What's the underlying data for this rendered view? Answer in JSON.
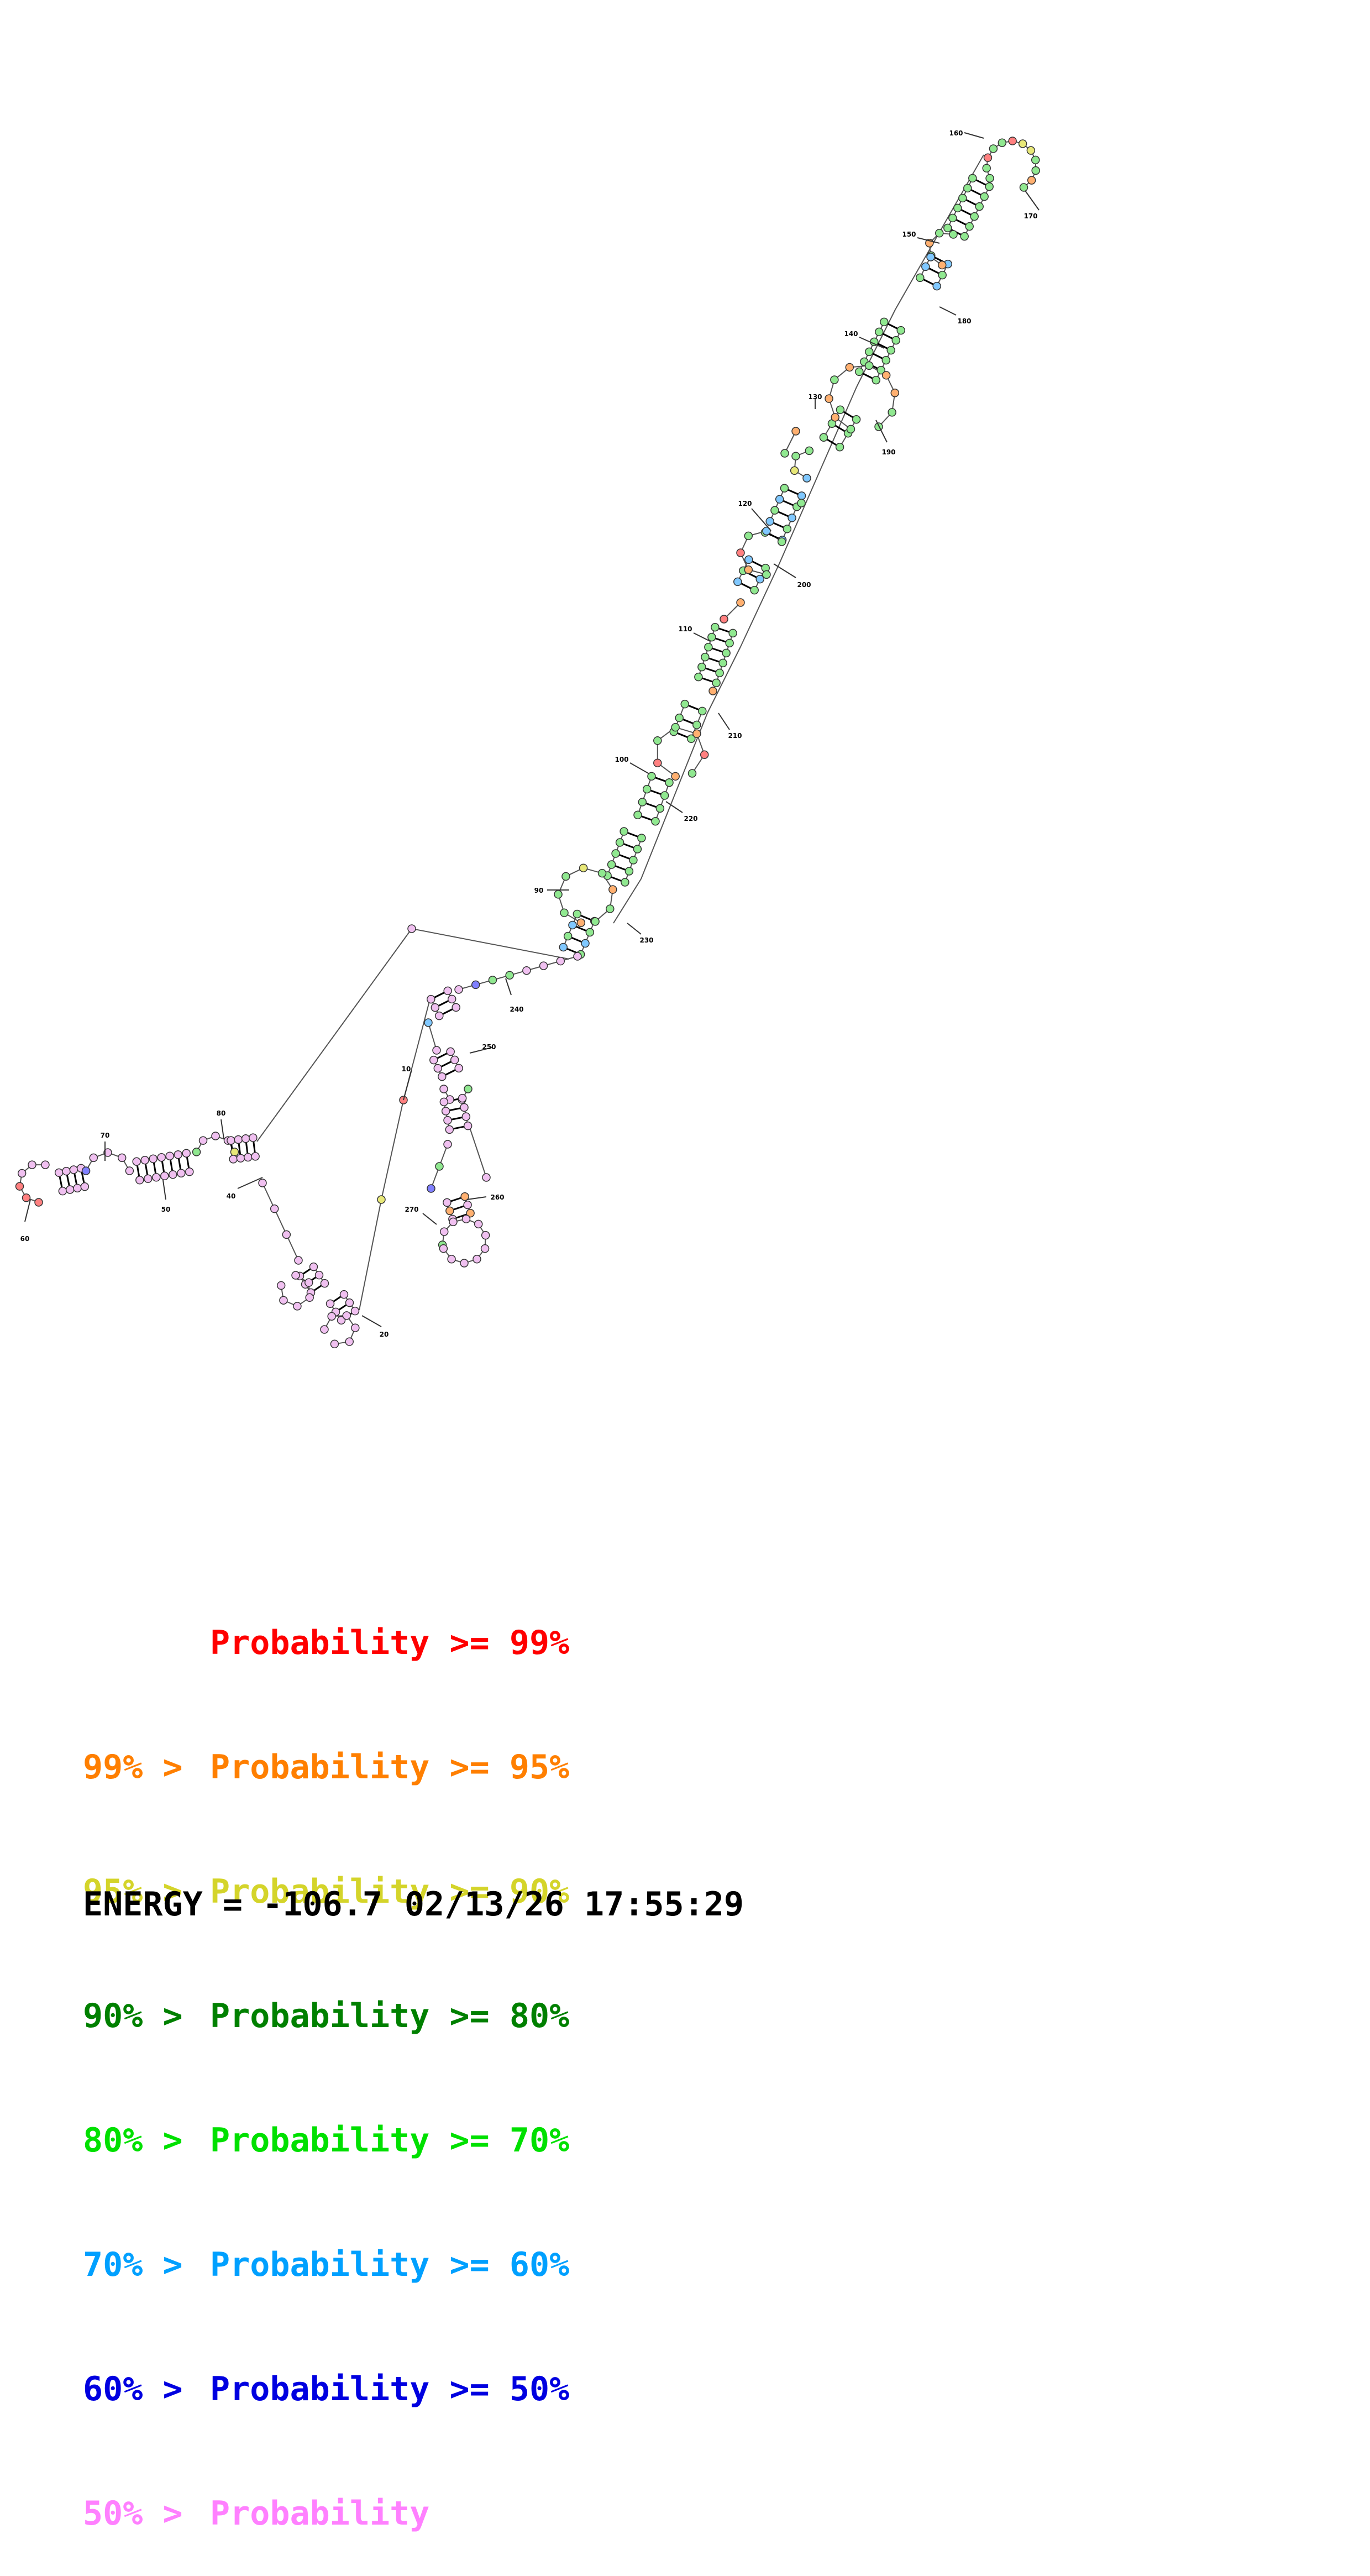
{
  "colors": {
    "red": "#ff0000",
    "orange": "#ff7f00",
    "yellow": "#d4d42a",
    "darkgreen": "#008000",
    "green": "#00e000",
    "cyan": "#00a0ff",
    "blue": "#0000e0",
    "pink": "#ff80ff"
  },
  "legend": [
    {
      "prefix": "",
      "rest": "Probability >= 99%",
      "color": "#ff0000"
    },
    {
      "prefix": "99% > ",
      "rest": "Probability >= 95%",
      "color": "#ff7f00"
    },
    {
      "prefix": "95% > ",
      "rest": "Probability >= 90%",
      "color": "#d4d42a"
    },
    {
      "prefix": "90% > ",
      "rest": "Probability >= 80%",
      "color": "#008000"
    },
    {
      "prefix": "80% > ",
      "rest": "Probability >= 70%",
      "color": "#00e000"
    },
    {
      "prefix": "70% > ",
      "rest": "Probability >= 60%",
      "color": "#00a0ff"
    },
    {
      "prefix": "60% > ",
      "rest": "Probability >= 50%",
      "color": "#0000e0"
    },
    {
      "prefix": "50% > ",
      "rest": "Probability",
      "color": "#ff80ff"
    }
  ],
  "energy": {
    "label": "ENERGY = -106.7",
    "timestamp": "02/13/26 17:55:29"
  },
  "position_labels": [
    "10",
    "20",
    "40",
    "50",
    "60",
    "70",
    "80",
    "90",
    "100",
    "110",
    "120",
    "130",
    "140",
    "150",
    "160",
    "170",
    "180",
    "190",
    "200",
    "210",
    "220",
    "230",
    "240",
    "250",
    "260",
    "270"
  ]
}
